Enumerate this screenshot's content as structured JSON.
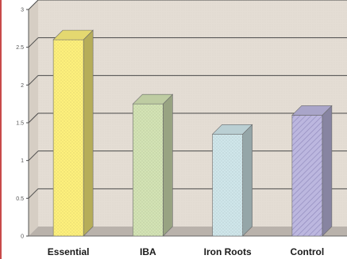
{
  "chart_data": {
    "type": "bar",
    "style": "3d",
    "title": "",
    "xlabel": "",
    "ylabel": "",
    "categories": [
      "Essential",
      "IBA",
      "Iron Roots",
      "Control"
    ],
    "values": [
      2.6,
      1.75,
      1.35,
      1.6
    ],
    "ylim": [
      0,
      3
    ],
    "yticks": [
      0,
      0.5,
      1,
      1.5,
      2,
      2.5,
      3
    ],
    "ytick_labels": [
      "0",
      "0.5",
      "1",
      "1.5",
      "2",
      "2.5",
      "3"
    ],
    "grid": true,
    "legend": "none",
    "colors": {
      "Essential": "#fdf07c",
      "IBA": "#d3e3b4",
      "Iron Roots": "#cfe6ea",
      "Control": "#bcb7df",
      "wall": "#e4ddd4",
      "floor": "#b9b2ab",
      "gridline": "#4a4a4a",
      "frame_left": "#c84a4a"
    },
    "bar_patterns": {
      "Essential": "dots",
      "IBA": "dots",
      "Iron Roots": "dots",
      "Control": "diagonal-hatch"
    }
  }
}
